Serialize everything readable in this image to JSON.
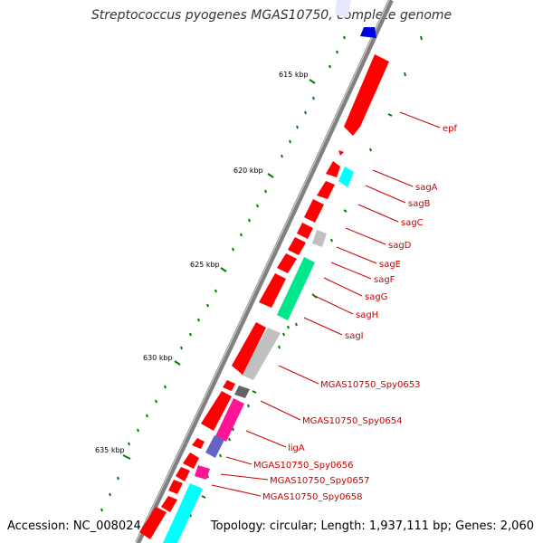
{
  "title": "Streptococcus pyogenes MGAS10750, complete genome",
  "footer": {
    "accession": "Accession: NC_008024",
    "topology": "Topology: circular; Length: 1,937,111 bp; Genes: 2,060"
  },
  "ticks": [
    "615 kbp",
    "620 kbp",
    "625 kbp",
    "630 kbp",
    "635 kbp"
  ],
  "colors": {
    "gene_red": "#ff0000",
    "gene_cyan": "#00ffff",
    "gene_gray": "#b4b4b4",
    "gene_darkgray": "#646464",
    "gene_green": "#00e68c",
    "gene_pink": "#ff1493",
    "gene_slate": "#6464c8",
    "gene_blue": "#0000e0",
    "backbone": "#808080",
    "dots": "#008000",
    "label": "#cc0000"
  },
  "gene_labels": [
    "epf",
    "sagA",
    "sagB",
    "sagC",
    "sagD",
    "sagE",
    "sagF",
    "sagG",
    "sagH",
    "sagI",
    "MGAS10750_Spy0653",
    "MGAS10750_Spy0654",
    "ligA",
    "MGAS10750_Spy0656",
    "MGAS10750_Spy0657",
    "MGAS10750_Spy0658"
  ]
}
